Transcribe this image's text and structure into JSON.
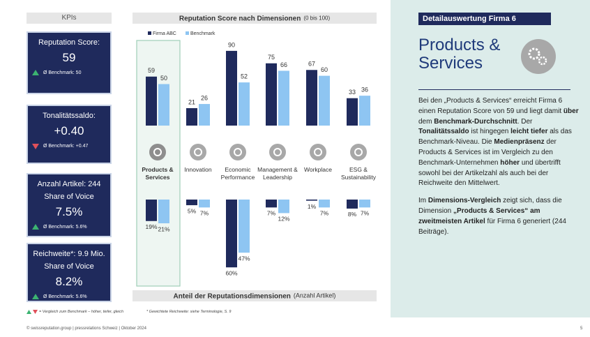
{
  "kpi_header": "KPIs",
  "kpis": [
    {
      "label": "Reputation Score:",
      "value": "59",
      "benchmark": "Ø Benchmark: 50",
      "trend": "up"
    },
    {
      "label": "Tonalitätssaldo:",
      "value": "+0.40",
      "benchmark": "Ø Benchmark: +0.47",
      "trend": "down"
    },
    {
      "label": "Anzahl Artikel: 244",
      "sublabel": "Share of Voice",
      "value": "7.5%",
      "benchmark": "Ø Benchmark: 5.6%",
      "trend": "up"
    },
    {
      "label": "Reichweite*: 9.9 Mio.",
      "sublabel": "Share of Voice",
      "value": "8.2%",
      "benchmark": "Ø Benchmark: 5.6%",
      "trend": "up"
    }
  ],
  "chart_data": [
    {
      "type": "bar",
      "title": "Reputation Score nach Dimensionen",
      "subtitle": "(0 bis 100)",
      "categories": [
        "Products & Services",
        "Innovation",
        "Economic Performance",
        "Management & Leadership",
        "Workplace",
        "ESG & Sustainability"
      ],
      "highlight": 0,
      "series": [
        {
          "name": "Firma ABC",
          "color": "#1f2a5c",
          "values": [
            59,
            21,
            90,
            75,
            67,
            33
          ]
        },
        {
          "name": "Benchmark",
          "color": "#8ec5f2",
          "values": [
            50,
            26,
            52,
            66,
            60,
            36
          ]
        }
      ],
      "ylim": [
        0,
        100
      ]
    },
    {
      "type": "bar",
      "direction": "down",
      "title": "Anteil der Reputationsdimensionen",
      "subtitle": "(Anzahl Artikel)",
      "series": [
        {
          "name": "Firma ABC",
          "color": "#1f2a5c",
          "values": [
            19,
            5,
            60,
            7,
            1,
            8
          ],
          "value_labels": [
            "19%",
            "5%",
            "60%",
            "7%",
            "1%",
            "8%"
          ]
        },
        {
          "name": "Benchmark",
          "color": "#8ec5f2",
          "values": [
            21,
            7,
            47,
            12,
            7,
            7
          ],
          "value_labels": [
            "21%",
            "7%",
            "47%",
            "12%",
            "7%",
            "7%"
          ]
        }
      ],
      "ylim": [
        0,
        100
      ]
    }
  ],
  "detail": {
    "header": "Detailauswertung Firma 6",
    "title": "Products & Services",
    "paragraphs": [
      [
        {
          "t": "Bei den „Products & Services“ erreicht Firma 6 einen Reputation Score von 59 und liegt damit "
        },
        {
          "t": "über",
          "b": true
        },
        {
          "t": " dem "
        },
        {
          "t": "Benchmark-Durchschnitt",
          "b": true
        },
        {
          "t": ". Der "
        },
        {
          "t": "Tonalitätssaldo",
          "b": true
        },
        {
          "t": " ist hingegen "
        },
        {
          "t": "leicht tiefer",
          "b": true
        },
        {
          "t": " als das Benchmark-Niveau. Die "
        },
        {
          "t": "Medienpräsenz",
          "b": true
        },
        {
          "t": " der Products & Services ist im Vergleich zu den Benchmark-Unternehmen "
        },
        {
          "t": "höher",
          "b": true
        },
        {
          "t": " und übertrifft sowohl bei der Artikelzahl als auch bei der Reichweite den Mittelwert."
        }
      ],
      [
        {
          "t": "Im "
        },
        {
          "t": "Dimensions-Vergleich",
          "b": true
        },
        {
          "t": " zeigt sich, dass die Dimension "
        },
        {
          "t": "„Products & Services“ am zweitmeisten Artikel",
          "b": true
        },
        {
          "t": " für Firma 6 generiert (244 Beiträge)."
        }
      ]
    ]
  },
  "notes": [
    "= Vergleich zum Benchmark – höher, tiefer, gleich",
    "* Gewichtete Reichweite: siehe Terminologie, S. 9"
  ],
  "footer": "© swissreputation.group | pressrelations Schweiz | Oktober 2024",
  "page_number": "5"
}
